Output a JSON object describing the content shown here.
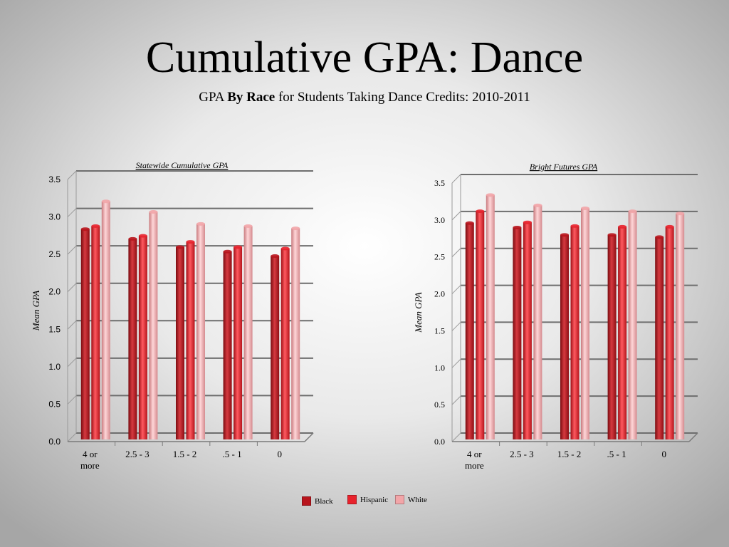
{
  "slide": {
    "title": "Cumulative GPA: Dance",
    "subtitle_prefix": "GPA ",
    "subtitle_bold": "By Race",
    "subtitle_suffix": " for Students Taking Dance Credits: 2010-2011"
  },
  "legend": {
    "items": [
      {
        "label": "Black",
        "color": "#b8141c"
      },
      {
        "label": "Hispanic",
        "color": "#e8222c"
      },
      {
        "label": "White",
        "color": "#f2a5a8"
      }
    ]
  },
  "chart_data": [
    {
      "type": "bar",
      "title": "Statewide Cumulative GPA",
      "xlabel": "",
      "ylabel": "Mean GPA",
      "ylim": [
        0,
        3.5
      ],
      "yticks": [
        "0.0",
        "0.5",
        "1.0",
        "1.5",
        "2.0",
        "2.5",
        "3.0",
        "3.5"
      ],
      "categories": [
        [
          "4 or",
          "more"
        ],
        [
          "2.5 - 3"
        ],
        [
          "1.5 - 2"
        ],
        [
          ".5 - 1"
        ],
        [
          "0"
        ]
      ],
      "series": [
        {
          "name": "Black",
          "values": [
            2.78,
            2.65,
            2.54,
            2.48,
            2.42
          ]
        },
        {
          "name": "Hispanic",
          "values": [
            2.82,
            2.69,
            2.61,
            2.54,
            2.52
          ]
        },
        {
          "name": "White",
          "values": [
            3.15,
            3.01,
            2.85,
            2.82,
            2.79
          ]
        }
      ],
      "grid": true
    },
    {
      "type": "bar",
      "title": "Bright Futures GPA",
      "xlabel": "",
      "ylabel": "Mean GPA",
      "ylim": [
        0,
        3.5
      ],
      "yticks": [
        "0.0",
        "0.5",
        "1.0",
        "1.5",
        "2.0",
        "2.5",
        "3.0",
        "3.5"
      ],
      "categories": [
        [
          "4 or",
          "more"
        ],
        [
          "2.5 - 3"
        ],
        [
          "1.5 - 2"
        ],
        [
          ".5 - 1"
        ],
        [
          "0"
        ]
      ],
      "series": [
        {
          "name": "Black",
          "values": [
            2.9,
            2.84,
            2.74,
            2.74,
            2.71
          ]
        },
        {
          "name": "Hispanic",
          "values": [
            3.06,
            2.91,
            2.86,
            2.85,
            2.85
          ]
        },
        {
          "name": "White",
          "values": [
            3.28,
            3.14,
            3.1,
            3.06,
            3.03
          ]
        }
      ],
      "grid": true
    }
  ]
}
